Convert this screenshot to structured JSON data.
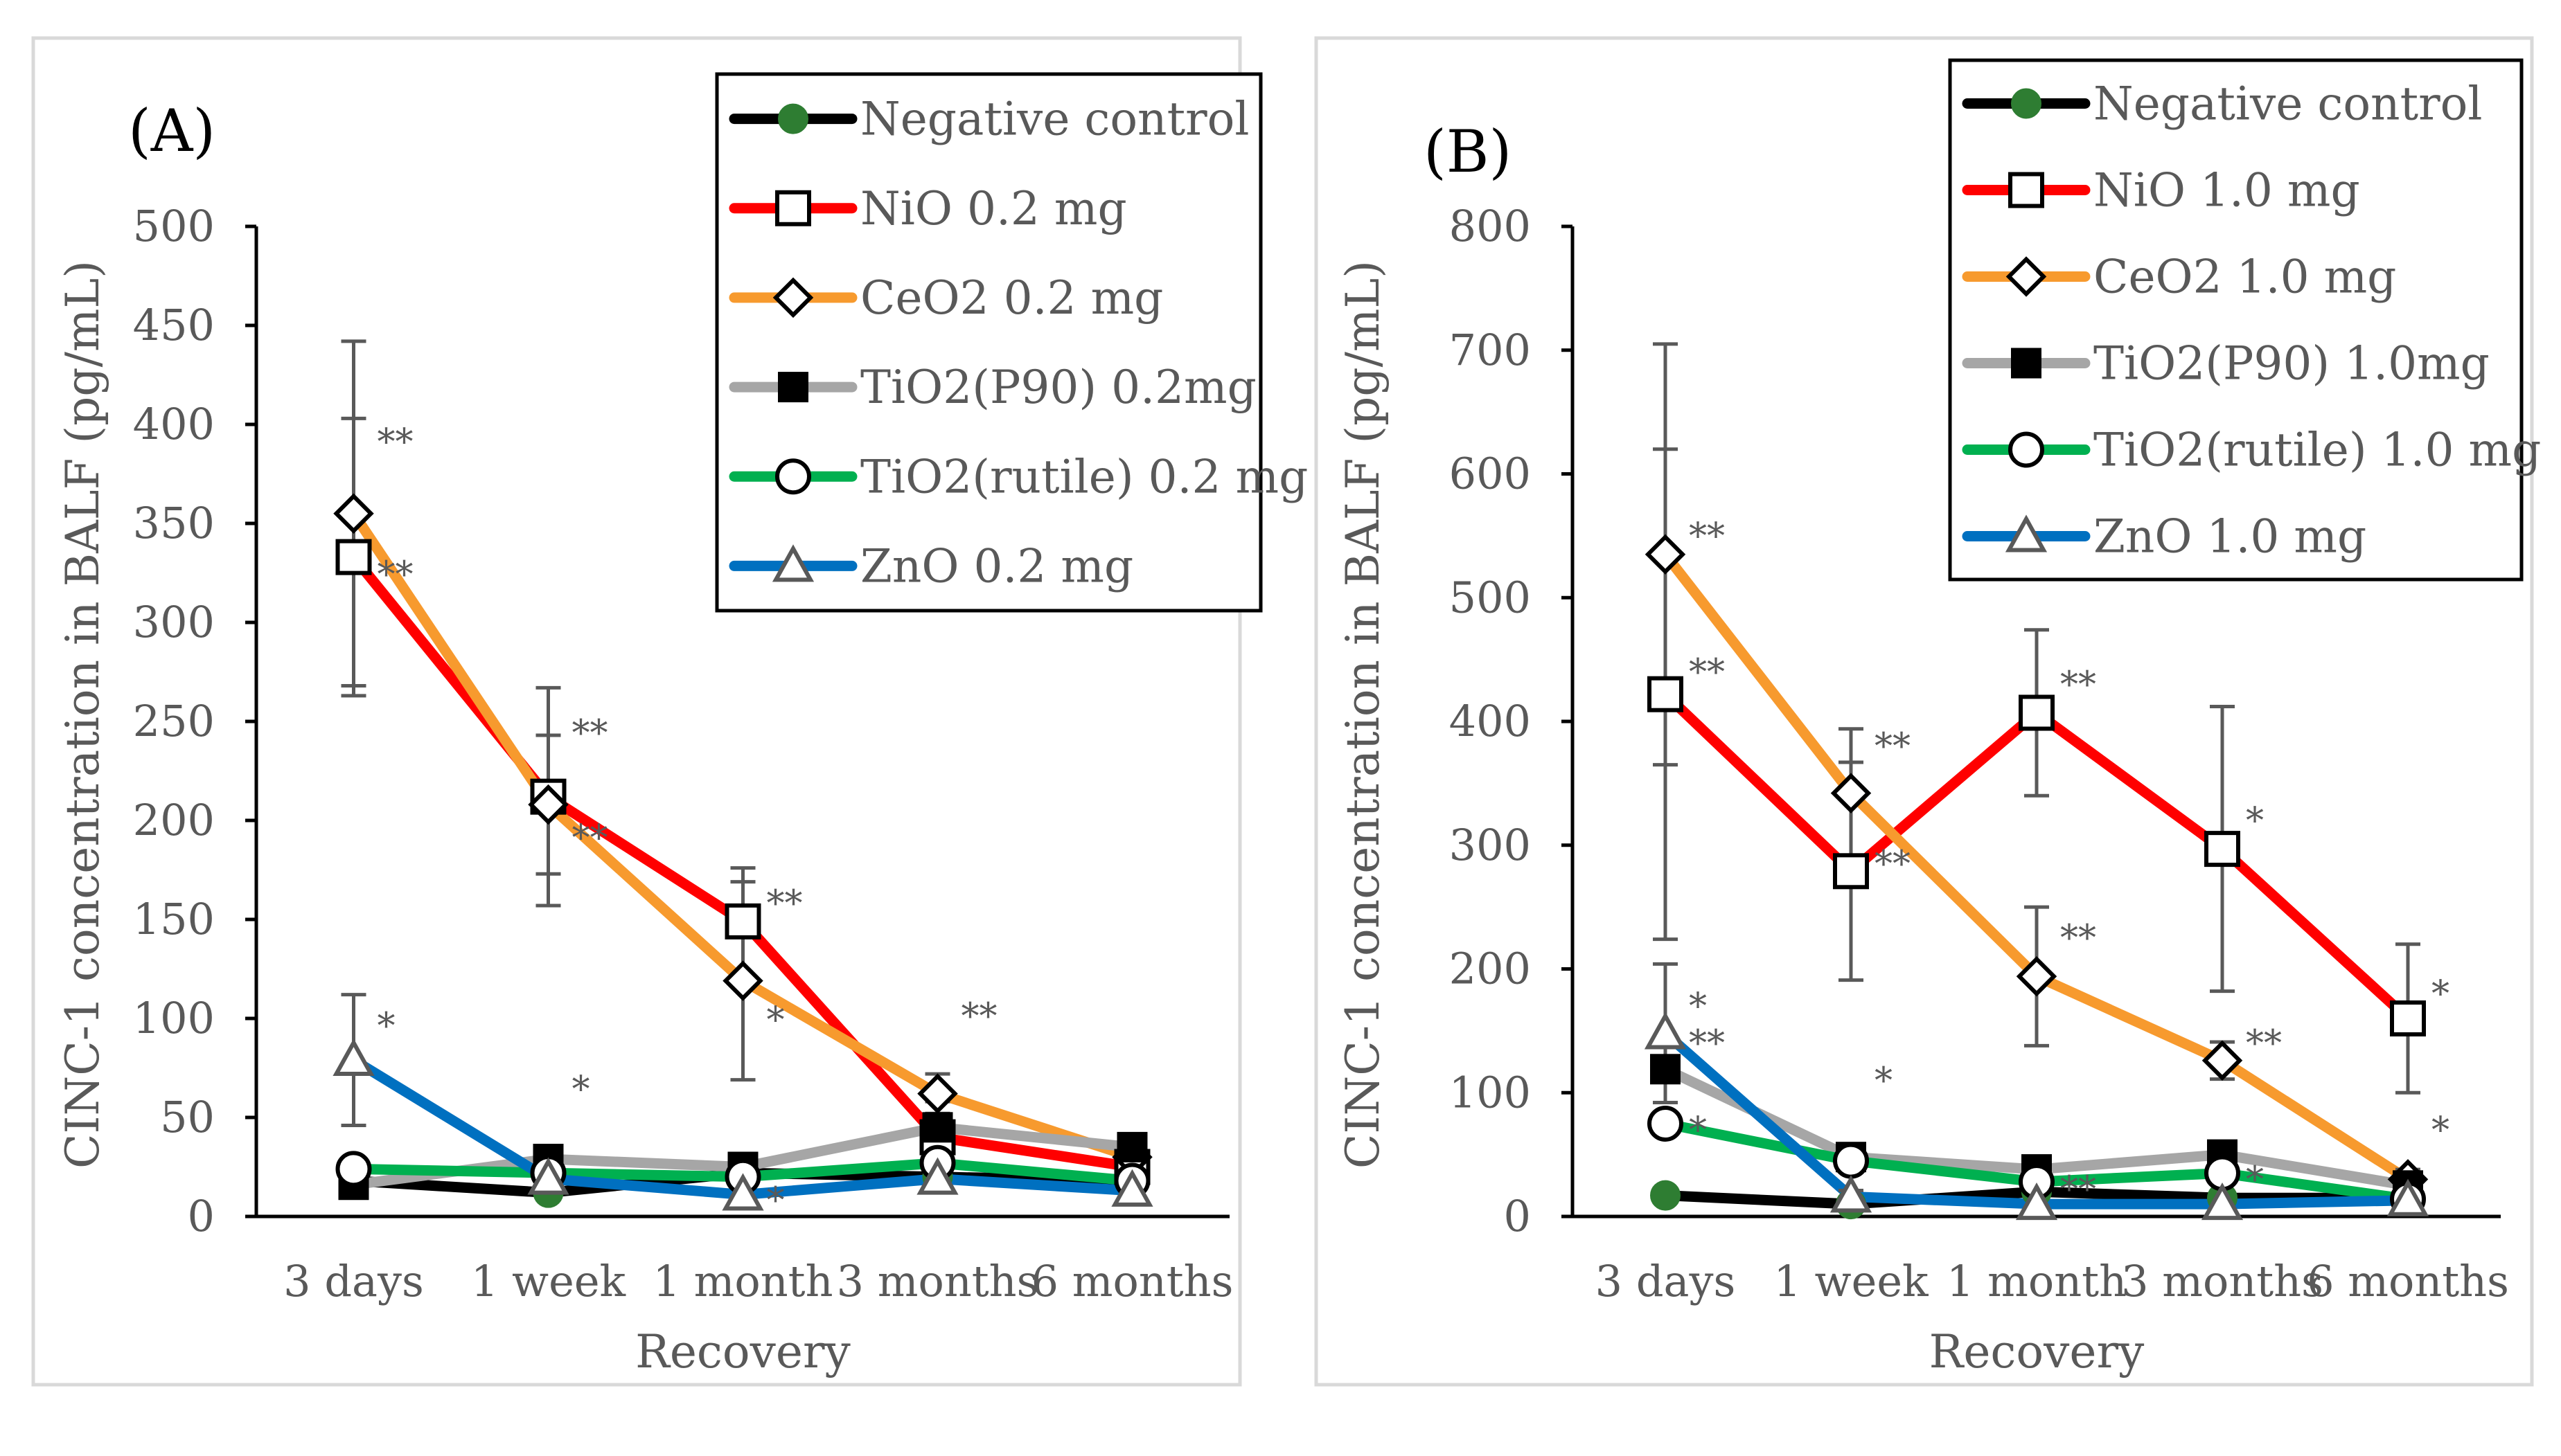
{
  "chart_data": [
    {
      "type": "line",
      "panel_label": "(A)",
      "xlabel": "Recovery",
      "ylabel": "CINC-1 concentration in BALF (pg/mL)",
      "categories": [
        "3 days",
        "1 week",
        "1 month",
        "3 months",
        "6 months"
      ],
      "ylim": [
        0,
        500
      ],
      "yticks": [
        0,
        50,
        100,
        150,
        200,
        250,
        300,
        350,
        400,
        450,
        500
      ],
      "ytick_labels": [
        "0",
        "50",
        "100",
        "150",
        "200",
        "250",
        "300",
        "350",
        "400",
        "450",
        "500"
      ],
      "legend_position": "top-right",
      "series": [
        {
          "name": "Negative control",
          "color": "#000000",
          "marker": "filled-circle",
          "marker_color": "#2e7d32",
          "values": [
            18,
            12,
            22,
            20,
            18
          ]
        },
        {
          "name": "NiO 0.2 mg",
          "color": "#ff0000",
          "marker": "open-square",
          "values": [
            333,
            212,
            149,
            40,
            25
          ],
          "errors": [
            70,
            55,
            27,
            18,
            12
          ]
        },
        {
          "name": "CeO2 0.2 mg",
          "color": "#f79a2e",
          "marker": "open-diamond",
          "values": [
            355,
            208,
            119,
            62,
            30
          ],
          "errors": [
            87,
            35,
            50,
            10,
            8
          ]
        },
        {
          "name": "TiO2(P90) 0.2mg",
          "color": "#a6a6a6",
          "marker": "filled-square",
          "values": [
            16,
            29,
            25,
            45,
            35
          ]
        },
        {
          "name": "TiO2(rutile) 0.2 mg",
          "color": "#00b050",
          "marker": "open-circle",
          "values": [
            24,
            22,
            20,
            27,
            18
          ]
        },
        {
          "name": "ZnO 0.2 mg",
          "color": "#0070c0",
          "marker": "open-triangle",
          "values": [
            79,
            19,
            11,
            19,
            13
          ],
          "errors": [
            33,
            6,
            4,
            5,
            4
          ]
        }
      ],
      "annotations": [
        {
          "category": "3 days",
          "value": 385,
          "text": "**"
        },
        {
          "category": "3 days",
          "value": 318,
          "text": "**"
        },
        {
          "category": "1 week",
          "value": 238,
          "text": "**"
        },
        {
          "category": "1 week",
          "value": 185,
          "text": "**"
        },
        {
          "category": "1 month",
          "value": 152,
          "text": "**"
        },
        {
          "category": "1 month",
          "value": 93,
          "text": "*"
        },
        {
          "category": "1 month",
          "value": 2,
          "text": "*"
        },
        {
          "category": "3 months",
          "value": 95,
          "text": "**"
        },
        {
          "category": "3 days",
          "value": 90,
          "text": "*"
        },
        {
          "category": "1 week",
          "value": 58,
          "text": "*"
        }
      ]
    },
    {
      "type": "line",
      "panel_label": "(B)",
      "xlabel": "Recovery",
      "ylabel": "CINC-1 concentration in BALF (pg/mL)",
      "categories": [
        "3 days",
        "1 week",
        "1 month",
        "3 months",
        "6 months"
      ],
      "ylim": [
        0,
        800
      ],
      "yticks": [
        0,
        100,
        200,
        300,
        400,
        500,
        600,
        700,
        800
      ],
      "ytick_labels": [
        "0",
        "100",
        "200",
        "300",
        "400",
        "500",
        "600",
        "700",
        "800"
      ],
      "legend_position": "top-right",
      "series": [
        {
          "name": "Negative control",
          "color": "#000000",
          "marker": "filled-circle",
          "marker_color": "#2e7d32",
          "values": [
            17,
            10,
            20,
            15,
            15
          ]
        },
        {
          "name": "NiO 1.0 mg",
          "color": "#ff0000",
          "marker": "open-square",
          "values": [
            422,
            279,
            407,
            297,
            160
          ],
          "errors": [
            198,
            88,
            67,
            115,
            60
          ]
        },
        {
          "name": "CeO2 1.0 mg",
          "color": "#f79a2e",
          "marker": "open-diamond",
          "values": [
            535,
            342,
            194,
            126,
            30
          ],
          "errors": [
            170,
            52,
            56,
            15,
            8
          ]
        },
        {
          "name": "TiO2(P90) 1.0mg",
          "color": "#a6a6a6",
          "marker": "filled-square",
          "values": [
            119,
            48,
            38,
            50,
            25
          ]
        },
        {
          "name": "TiO2(rutile) 1.0 mg",
          "color": "#00b050",
          "marker": "open-circle",
          "values": [
            75,
            45,
            28,
            35,
            14
          ]
        },
        {
          "name": "ZnO 1.0 mg",
          "color": "#0070c0",
          "marker": "open-triangle",
          "values": [
            148,
            16,
            10,
            10,
            13
          ],
          "errors": [
            56,
            5,
            4,
            4,
            4
          ]
        }
      ],
      "annotations": [
        {
          "category": "3 days",
          "value": 540,
          "text": "**"
        },
        {
          "category": "3 days",
          "value": 430,
          "text": "**"
        },
        {
          "category": "3 days",
          "value": 160,
          "text": "*"
        },
        {
          "category": "3 days",
          "value": 130,
          "text": "**"
        },
        {
          "category": "3 days",
          "value": 60,
          "text": "*"
        },
        {
          "category": "1 week",
          "value": 370,
          "text": "**"
        },
        {
          "category": "1 week",
          "value": 275,
          "text": "**"
        },
        {
          "category": "1 week",
          "value": 100,
          "text": "*"
        },
        {
          "category": "1 month",
          "value": 420,
          "text": "**"
        },
        {
          "category": "1 month",
          "value": 215,
          "text": "**"
        },
        {
          "category": "1 month",
          "value": 12,
          "text": "**"
        },
        {
          "category": "3 months",
          "value": 310,
          "text": "*"
        },
        {
          "category": "3 months",
          "value": 130,
          "text": "**"
        },
        {
          "category": "3 months",
          "value": 20,
          "text": "*"
        },
        {
          "category": "6 months",
          "value": 170,
          "text": "*"
        },
        {
          "category": "6 months",
          "value": 60,
          "text": "*"
        }
      ]
    }
  ]
}
